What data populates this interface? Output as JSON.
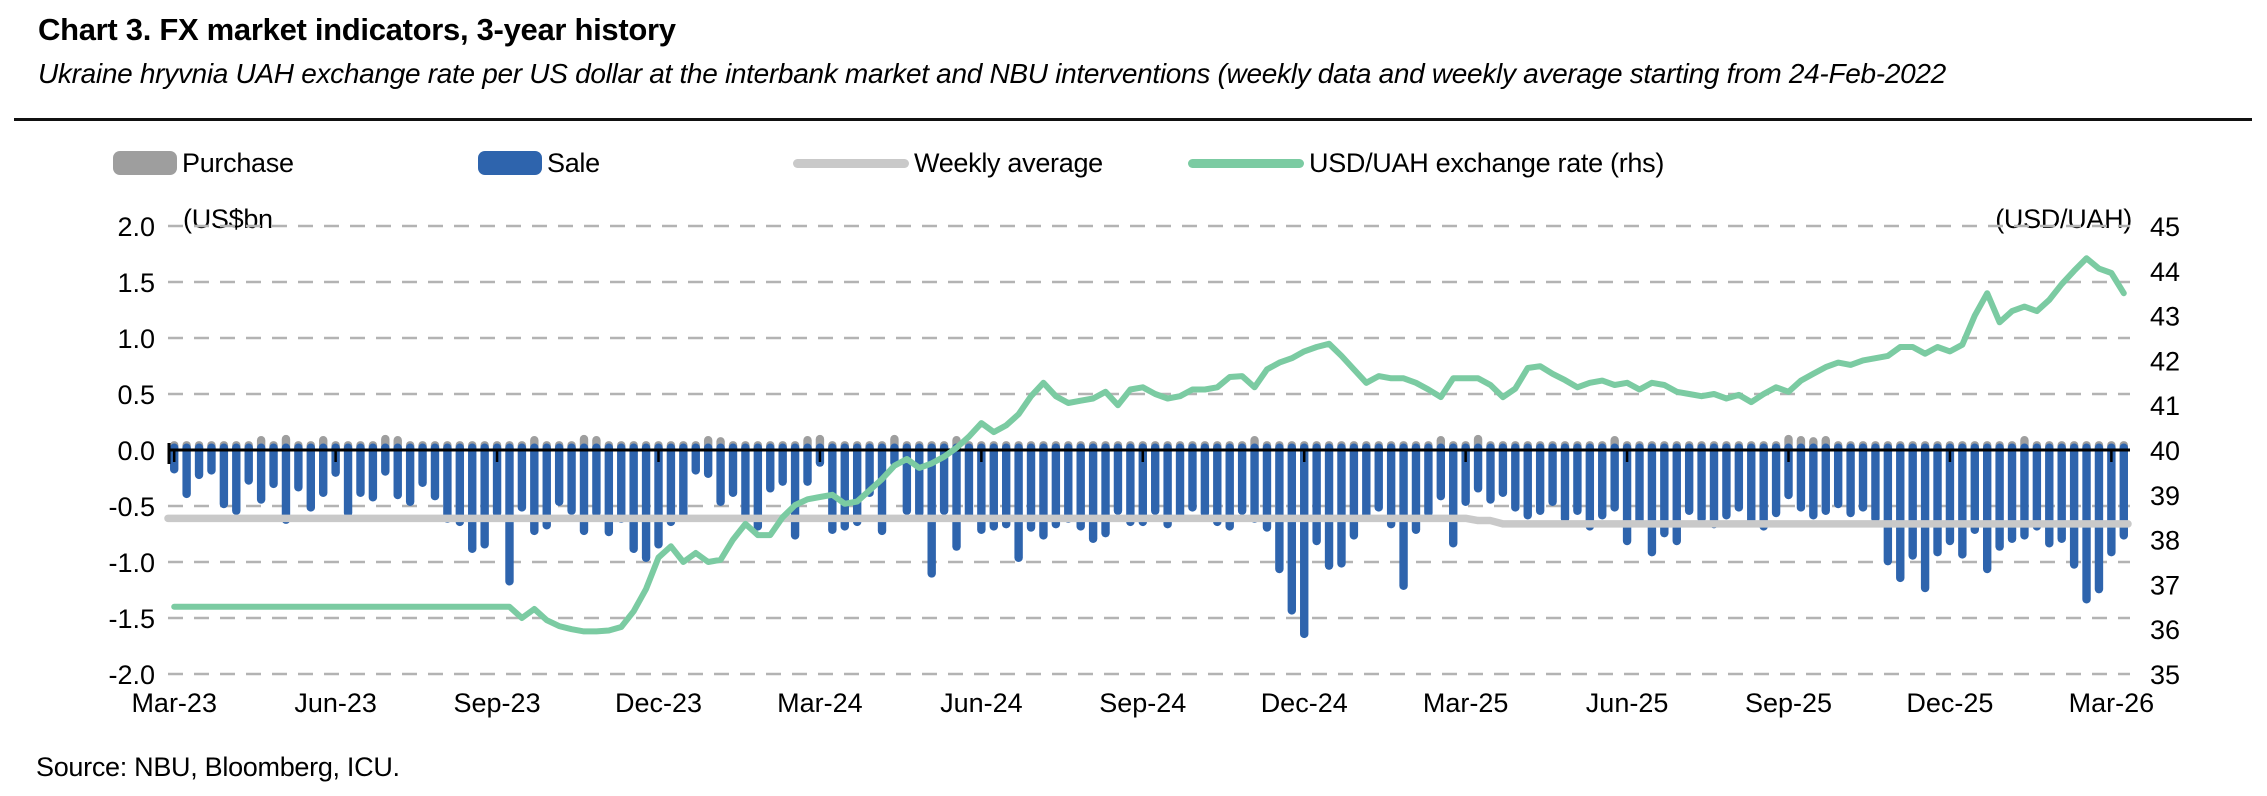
{
  "header": {
    "title": "Chart 3. FX market indicators, 3-year history",
    "subtitle": "Ukraine hryvnia UAH exchange rate per US dollar at the interbank market and NBU interventions (weekly data and weekly average starting from 24-Feb-2022"
  },
  "legend": {
    "items": [
      {
        "label": "Purchase",
        "color": "#9e9e9e",
        "swatch": "bar"
      },
      {
        "label": "Sale",
        "color": "#2e64ad",
        "swatch": "bar"
      },
      {
        "label": "Weekly average",
        "color": "#c9c9c9",
        "swatch": "line"
      },
      {
        "label": "USD/UAH exchange rate (rhs)",
        "color": "#7bcba2",
        "swatch": "line"
      }
    ]
  },
  "source": "Source: NBU, Bloomberg, ICU.",
  "chart_data": {
    "type": "combo-bar-line",
    "title": "FX market indicators, 3-year history",
    "axes": {
      "left_unit_label": "(US$bn",
      "right_unit_label": "(USD/UAH)",
      "left_ticks": [
        "2.0",
        "1.5",
        "1.0",
        "0.5",
        "0.0",
        "-0.5",
        "-1.0",
        "-1.5",
        "-2.0"
      ],
      "left_range": [
        -2.0,
        2.0
      ],
      "right_ticks": [
        "45",
        "44",
        "43",
        "42",
        "41",
        "40",
        "39",
        "38",
        "37",
        "36",
        "35"
      ],
      "right_range": [
        35,
        45
      ],
      "x_labels": [
        "Mar-23",
        "Jun-23",
        "Sep-23",
        "Dec-23",
        "Mar-24",
        "Jun-24",
        "Sep-24",
        "Dec-24",
        "Mar-25",
        "Jun-25",
        "Sep-25",
        "Dec-25",
        "Mar-26"
      ],
      "grid": "dashed-horizontal"
    },
    "weeks": 158,
    "label_weeks": [
      1,
      14,
      27,
      40,
      53,
      66,
      79,
      92,
      105,
      118,
      131,
      144,
      157
    ],
    "series": [
      {
        "name": "Sale",
        "unit": "US$bn",
        "color": "#2e64ad",
        "type": "bar",
        "values": [
          -0.21,
          -0.43,
          -0.26,
          -0.22,
          -0.52,
          -0.58,
          -0.31,
          -0.48,
          -0.34,
          -0.66,
          -0.37,
          -0.55,
          -0.42,
          -0.24,
          -0.6,
          -0.42,
          -0.46,
          -0.23,
          -0.44,
          -0.5,
          -0.33,
          -0.45,
          -0.65,
          -0.68,
          -0.92,
          -0.88,
          -0.6,
          -1.21,
          -0.55,
          -0.76,
          -0.71,
          -0.5,
          -0.58,
          -0.76,
          -0.6,
          -0.77,
          -0.65,
          -0.92,
          -1.0,
          -0.88,
          -0.68,
          -0.64,
          -0.22,
          -0.25,
          -0.5,
          -0.42,
          -0.62,
          -0.72,
          -0.38,
          -0.32,
          -0.8,
          -0.32,
          -0.15,
          -0.75,
          -0.72,
          -0.68,
          -0.42,
          -0.76,
          -0.15,
          -0.58,
          -0.6,
          -1.14,
          -0.58,
          -0.9,
          -0.62,
          -0.75,
          -0.72,
          -0.7,
          -1.0,
          -0.73,
          -0.8,
          -0.7,
          -0.65,
          -0.72,
          -0.83,
          -0.78,
          -0.58,
          -0.68,
          -0.68,
          -0.58,
          -0.7,
          -0.62,
          -0.55,
          -0.6,
          -0.68,
          -0.72,
          -0.58,
          -0.65,
          -0.73,
          -1.1,
          -1.47,
          -1.68,
          -0.85,
          -1.07,
          -1.05,
          -0.8,
          -0.62,
          -0.55,
          -0.7,
          -1.25,
          -0.75,
          -0.6,
          -0.45,
          -0.87,
          -0.5,
          -0.38,
          -0.48,
          -0.42,
          -0.55,
          -0.62,
          -0.58,
          -0.5,
          -0.65,
          -0.58,
          -0.72,
          -0.62,
          -0.55,
          -0.85,
          -0.68,
          -0.95,
          -0.78,
          -0.85,
          -0.58,
          -0.65,
          -0.7,
          -0.62,
          -0.55,
          -0.68,
          -0.72,
          -0.6,
          -0.44,
          -0.55,
          -0.62,
          -0.58,
          -0.52,
          -0.6,
          -0.55,
          -0.65,
          -1.03,
          -1.18,
          -0.98,
          -1.27,
          -0.95,
          -0.85,
          -0.97,
          -0.75,
          -1.1,
          -0.9,
          -0.83,
          -0.8,
          -0.72,
          -0.87,
          -0.83,
          -1.06,
          -1.37,
          -1.28,
          -0.95,
          -0.8
        ]
      },
      {
        "name": "Purchase",
        "unit": "US$bn",
        "color": "#9e9e9e",
        "type": "bar",
        "default_value": 0.035,
        "overrides": {
          "8": 0.08,
          "10": 0.09,
          "13": 0.08,
          "18": 0.09,
          "19": 0.08,
          "30": 0.08,
          "34": 0.09,
          "35": 0.08,
          "44": 0.08,
          "45": 0.07,
          "52": 0.08,
          "53": 0.09,
          "59": 0.09,
          "64": 0.08,
          "88": 0.08,
          "103": 0.08,
          "106": 0.09,
          "117": 0.08,
          "131": 0.09,
          "132": 0.08,
          "133": 0.07,
          "134": 0.08,
          "150": 0.08
        }
      },
      {
        "name": "Weekly average",
        "unit": "US$bn",
        "color": "#c9c9c9",
        "type": "line",
        "segments": [
          {
            "from_week": 1,
            "to_week": 105,
            "value": -0.61
          },
          {
            "from_week": 106,
            "to_week": 107,
            "value": -0.63
          },
          {
            "from_week": 108,
            "to_week": 158,
            "value": -0.66
          }
        ]
      },
      {
        "name": "USD/UAH exchange rate (rhs)",
        "unit": "USD/UAH",
        "color": "#7bcba2",
        "type": "line",
        "axis": "right",
        "values": [
          36.5,
          36.5,
          36.5,
          36.5,
          36.5,
          36.5,
          36.5,
          36.5,
          36.5,
          36.5,
          36.5,
          36.5,
          36.5,
          36.5,
          36.5,
          36.5,
          36.5,
          36.5,
          36.5,
          36.5,
          36.5,
          36.5,
          36.5,
          36.5,
          36.5,
          36.5,
          36.5,
          36.5,
          36.25,
          36.45,
          36.2,
          36.07,
          36.0,
          35.95,
          35.95,
          35.97,
          36.05,
          36.4,
          36.9,
          37.6,
          37.85,
          37.5,
          37.7,
          37.5,
          37.55,
          38.0,
          38.35,
          38.1,
          38.1,
          38.5,
          38.77,
          38.9,
          38.95,
          39.0,
          38.8,
          38.85,
          39.1,
          39.35,
          39.65,
          39.8,
          39.6,
          39.7,
          39.85,
          40.05,
          40.3,
          40.6,
          40.4,
          40.55,
          40.8,
          41.2,
          41.5,
          41.2,
          41.05,
          41.1,
          41.15,
          41.3,
          41.0,
          41.35,
          41.4,
          41.25,
          41.15,
          41.2,
          41.35,
          41.35,
          41.4,
          41.63,
          41.65,
          41.4,
          41.8,
          41.95,
          42.05,
          42.2,
          42.3,
          42.37,
          42.1,
          41.8,
          41.5,
          41.65,
          41.6,
          41.6,
          41.5,
          41.35,
          41.18,
          41.6,
          41.6,
          41.6,
          41.45,
          41.18,
          41.37,
          41.83,
          41.87,
          41.7,
          41.56,
          41.4,
          41.5,
          41.55,
          41.45,
          41.5,
          41.35,
          41.5,
          41.45,
          41.3,
          41.25,
          41.2,
          41.25,
          41.15,
          41.23,
          41.07,
          41.25,
          41.4,
          41.3,
          41.55,
          41.7,
          41.85,
          41.95,
          41.9,
          42.0,
          42.05,
          42.1,
          42.3,
          42.3,
          42.15,
          42.3,
          42.2,
          42.35,
          43.0,
          43.5,
          42.85,
          43.1,
          43.2,
          43.1,
          43.35,
          43.7,
          44.0,
          44.28,
          44.05,
          43.95,
          43.5
        ]
      }
    ],
    "colors": {
      "grid": "#b3b3b3",
      "axis": "#000000"
    }
  }
}
